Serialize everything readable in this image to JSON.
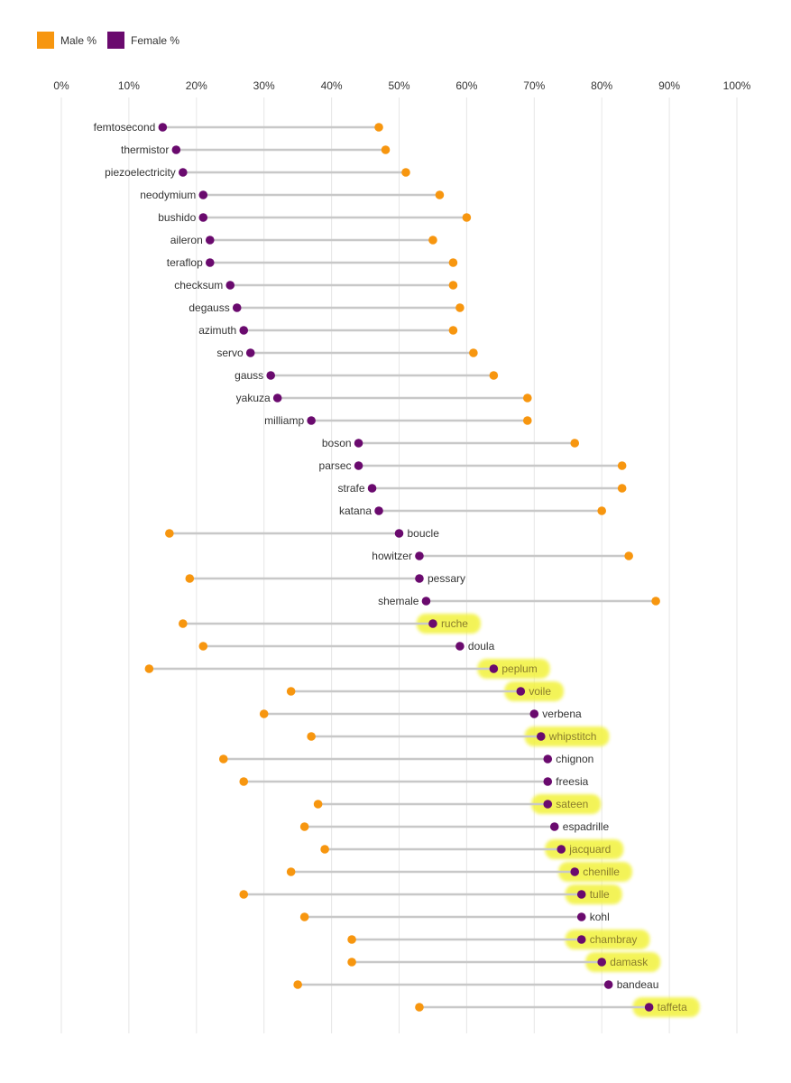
{
  "chart_data": {
    "type": "dumbbell",
    "x_ticks": [
      "0%",
      "10%",
      "20%",
      "30%",
      "40%",
      "50%",
      "60%",
      "70%",
      "80%",
      "90%",
      "100%"
    ],
    "xlim": [
      0,
      100
    ],
    "grid": true,
    "legend_position": "top-left",
    "series": [
      {
        "name": "Male %",
        "key": "male",
        "color": "#f7960f"
      },
      {
        "name": "Female %",
        "key": "female",
        "color": "#6a0a6e"
      }
    ],
    "highlight_color": "#f2f23a",
    "rows": [
      {
        "label": "femtosecond",
        "female": 15,
        "male": 47,
        "highlight": false
      },
      {
        "label": "thermistor",
        "female": 17,
        "male": 48,
        "highlight": false
      },
      {
        "label": "piezoelectricity",
        "female": 18,
        "male": 51,
        "highlight": false
      },
      {
        "label": "neodymium",
        "female": 21,
        "male": 56,
        "highlight": false
      },
      {
        "label": "bushido",
        "female": 21,
        "male": 60,
        "highlight": false
      },
      {
        "label": "aileron",
        "female": 22,
        "male": 55,
        "highlight": false
      },
      {
        "label": "teraflop",
        "female": 22,
        "male": 58,
        "highlight": false
      },
      {
        "label": "checksum",
        "female": 25,
        "male": 58,
        "highlight": false
      },
      {
        "label": "degauss",
        "female": 26,
        "male": 59,
        "highlight": false
      },
      {
        "label": "azimuth",
        "female": 27,
        "male": 58,
        "highlight": false
      },
      {
        "label": "servo",
        "female": 28,
        "male": 61,
        "highlight": false
      },
      {
        "label": "gauss",
        "female": 31,
        "male": 64,
        "highlight": false
      },
      {
        "label": "yakuza",
        "female": 32,
        "male": 69,
        "highlight": false
      },
      {
        "label": "milliamp",
        "female": 37,
        "male": 69,
        "highlight": false
      },
      {
        "label": "boson",
        "female": 44,
        "male": 76,
        "highlight": false
      },
      {
        "label": "parsec",
        "female": 44,
        "male": 83,
        "highlight": false
      },
      {
        "label": "strafe",
        "female": 46,
        "male": 83,
        "highlight": false
      },
      {
        "label": "katana",
        "female": 47,
        "male": 80,
        "highlight": false
      },
      {
        "label": "boucle",
        "female": 50,
        "male": 16,
        "highlight": false
      },
      {
        "label": "howitzer",
        "female": 53,
        "male": 84,
        "highlight": false
      },
      {
        "label": "pessary",
        "female": 53,
        "male": 19,
        "highlight": false
      },
      {
        "label": "shemale",
        "female": 54,
        "male": 88,
        "highlight": false
      },
      {
        "label": "ruche",
        "female": 55,
        "male": 18,
        "highlight": true
      },
      {
        "label": "doula",
        "female": 59,
        "male": 21,
        "highlight": false
      },
      {
        "label": "peplum",
        "female": 64,
        "male": 13,
        "highlight": true
      },
      {
        "label": "voile",
        "female": 68,
        "male": 34,
        "highlight": true
      },
      {
        "label": "verbena",
        "female": 70,
        "male": 30,
        "highlight": false
      },
      {
        "label": "whipstitch",
        "female": 71,
        "male": 37,
        "highlight": true
      },
      {
        "label": "chignon",
        "female": 72,
        "male": 24,
        "highlight": false
      },
      {
        "label": "freesia",
        "female": 72,
        "male": 27,
        "highlight": false
      },
      {
        "label": "sateen",
        "female": 72,
        "male": 38,
        "highlight": true
      },
      {
        "label": "espadrille",
        "female": 73,
        "male": 36,
        "highlight": false
      },
      {
        "label": "jacquard",
        "female": 74,
        "male": 39,
        "highlight": true
      },
      {
        "label": "chenille",
        "female": 76,
        "male": 34,
        "highlight": true
      },
      {
        "label": "tulle",
        "female": 77,
        "male": 27,
        "highlight": true
      },
      {
        "label": "kohl",
        "female": 77,
        "male": 36,
        "highlight": false
      },
      {
        "label": "chambray",
        "female": 77,
        "male": 43,
        "highlight": true
      },
      {
        "label": "damask",
        "female": 80,
        "male": 43,
        "highlight": true
      },
      {
        "label": "bandeau",
        "female": 81,
        "male": 35,
        "highlight": false
      },
      {
        "label": "taffeta",
        "female": 87,
        "male": 53,
        "highlight": true
      }
    ]
  }
}
